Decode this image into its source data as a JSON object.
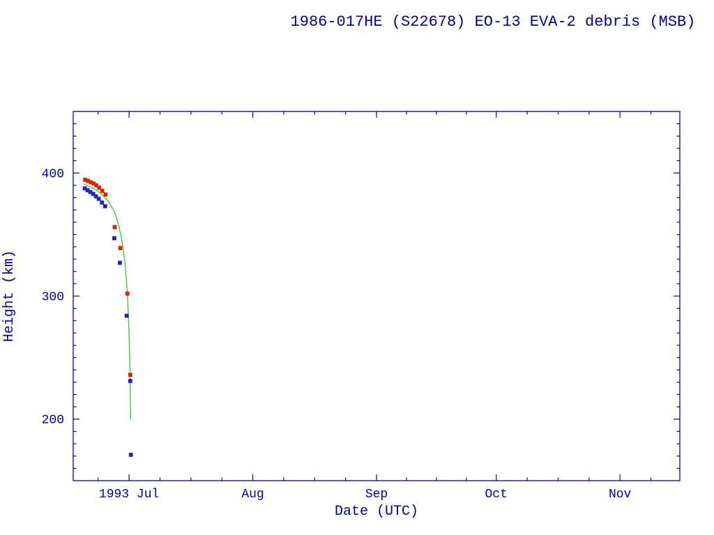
{
  "chart_data": {
    "type": "scatter",
    "title": "1986-017HE (S22678) EO-13 EVA-2 debris (MSB)",
    "xlabel": "Date (UTC)",
    "ylabel": "Height (km)",
    "x_unit": "days relative to 1993 Jul 1",
    "xlim": [
      -14,
      138
    ],
    "ylim": [
      150,
      450
    ],
    "grid": false,
    "legend": "none",
    "x_ticks": [
      {
        "day": 0,
        "label": "1993 Jul"
      },
      {
        "day": 31,
        "label": "Aug"
      },
      {
        "day": 62,
        "label": "Sep"
      },
      {
        "day": 92,
        "label": "Oct"
      },
      {
        "day": 123,
        "label": "Nov"
      }
    ],
    "y_ticks": [
      {
        "value": 200,
        "label": "200"
      },
      {
        "value": 300,
        "label": "300"
      },
      {
        "value": 400,
        "label": "400"
      }
    ],
    "colors": {
      "axis": "#0000a0",
      "text": "#0000a0",
      "apogee": "#dd2200",
      "perigee": "#2222cc",
      "fit": "#2ec82e",
      "background": "#ffffff"
    },
    "series": [
      {
        "name": "decay-fit-curve",
        "kind": "line",
        "color_key": "fit",
        "points": [
          [
            -11.2,
            391
          ],
          [
            -10.0,
            389
          ],
          [
            -9.0,
            387.5
          ],
          [
            -8.0,
            385.5
          ],
          [
            -7.0,
            383
          ],
          [
            -6.0,
            380
          ],
          [
            -5.0,
            376
          ],
          [
            -4.0,
            370.5
          ],
          [
            -3.5,
            367
          ],
          [
            -3.0,
            362
          ],
          [
            -2.5,
            356
          ],
          [
            -2.0,
            348.5
          ],
          [
            -1.5,
            339
          ],
          [
            -1.0,
            326
          ],
          [
            -0.7,
            315
          ],
          [
            -0.4,
            300
          ],
          [
            -0.2,
            286
          ],
          [
            0.0,
            268
          ],
          [
            0.15,
            250
          ],
          [
            0.3,
            228
          ],
          [
            0.4,
            200
          ]
        ]
      },
      {
        "name": "perigee-height-points",
        "kind": "scatter",
        "color_key": "perigee",
        "points": [
          [
            -11.1,
            387.5
          ],
          [
            -10.4,
            386.0
          ],
          [
            -9.7,
            384.5
          ],
          [
            -9.0,
            383.0
          ],
          [
            -8.3,
            381.0
          ],
          [
            -7.6,
            379.0
          ],
          [
            -6.8,
            376.0
          ],
          [
            -6.0,
            373.0
          ],
          [
            -3.7,
            347.0
          ],
          [
            -2.3,
            327.0
          ],
          [
            -0.6,
            284.0
          ],
          [
            0.3,
            231.0
          ],
          [
            0.45,
            171.0
          ]
        ]
      },
      {
        "name": "apogee-height-points",
        "kind": "scatter",
        "color_key": "apogee",
        "points": [
          [
            -11.0,
            394.5
          ],
          [
            -10.3,
            393.5
          ],
          [
            -9.6,
            392.5
          ],
          [
            -8.9,
            391.5
          ],
          [
            -8.2,
            390.0
          ],
          [
            -7.5,
            388.0
          ],
          [
            -6.7,
            385.5
          ],
          [
            -5.9,
            382.5
          ],
          [
            -3.6,
            356.0
          ],
          [
            -2.2,
            339.0
          ],
          [
            -0.4,
            302.0
          ],
          [
            0.3,
            236.0
          ]
        ]
      }
    ]
  }
}
